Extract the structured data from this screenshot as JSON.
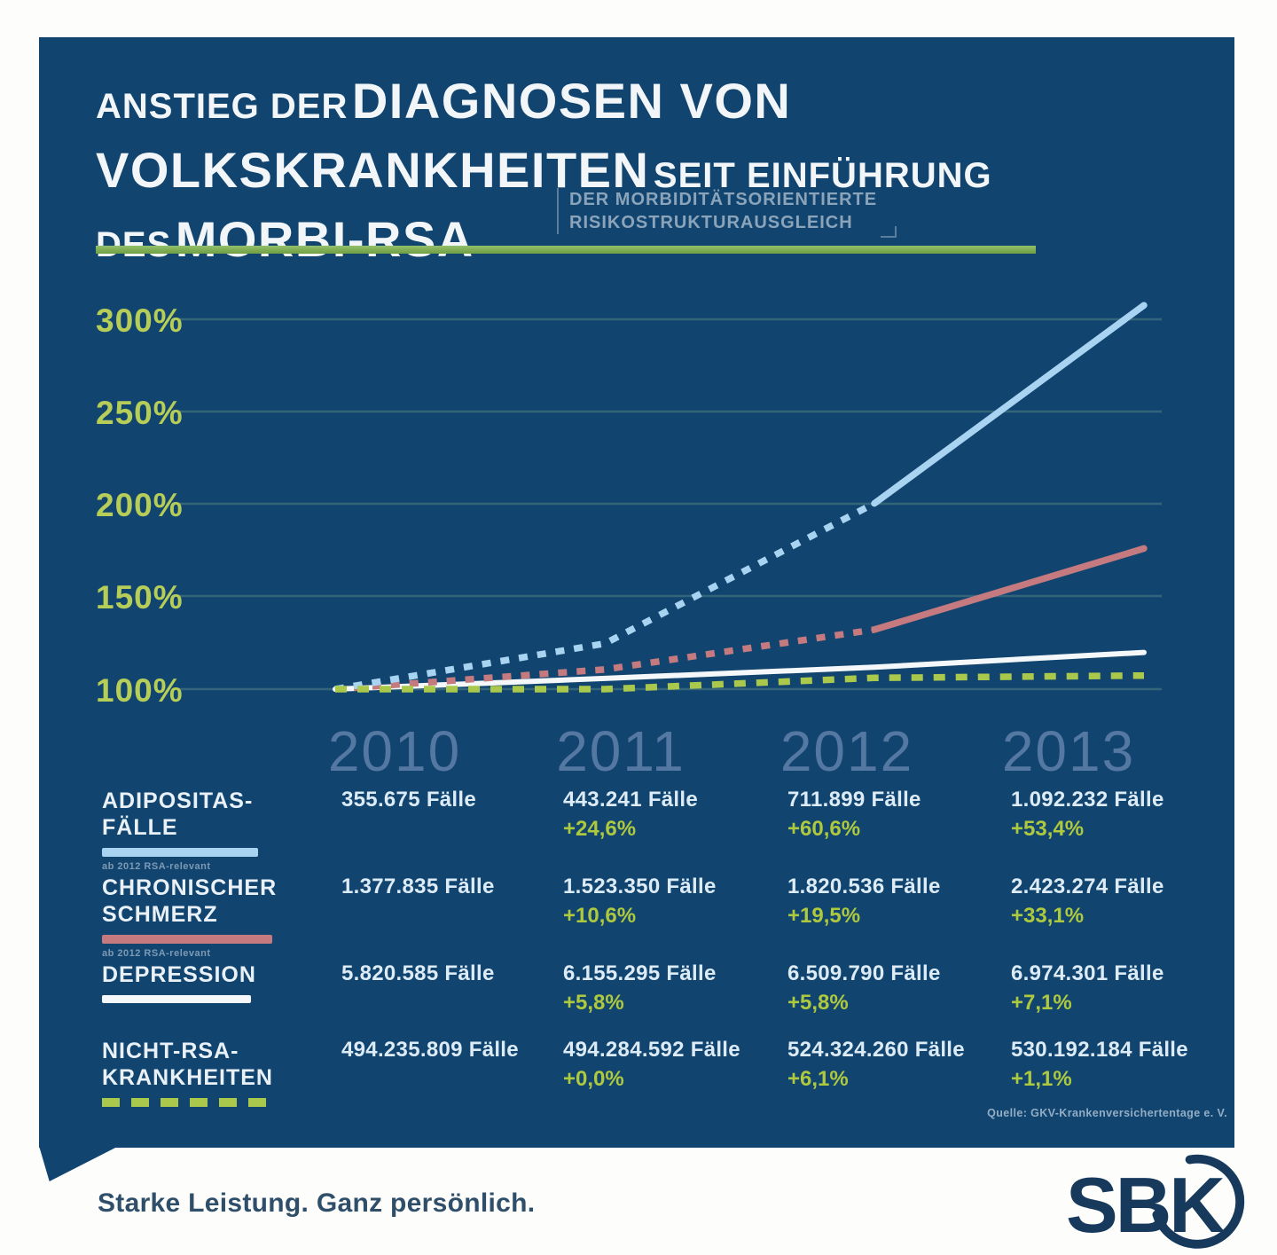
{
  "header": {
    "title": {
      "line1_small": "ANSTIEG DER",
      "line1_large": "DIAGNOSEN VON",
      "line2_large": "VOLKSKRANKHEITEN",
      "line2_small": "SEIT EINFÜHRUNG",
      "line3_small": "DES",
      "line3_large": "MORBI-RSA"
    },
    "subtitle": {
      "line1": "DER MORBIDITÄTSORIENTIERTE",
      "line2": "RISIKOSTRUKTURAUSGLEICH"
    }
  },
  "chart_data": {
    "type": "line",
    "title": "Anstieg der Diagnosen von Volkskrankheiten seit Einführung des Morbi-RSA (2010 = 100%)",
    "x_labels": [
      "2010",
      "2011",
      "2012",
      "2013"
    ],
    "yticks": [
      "300%",
      "250%",
      "200%",
      "150%",
      "100%"
    ],
    "ylim": [
      100,
      310
    ],
    "grid": true,
    "legend_position": "bottom",
    "colors": {
      "background": "#114570",
      "gridline": "#41707f",
      "ytick_green": "#b6cd58",
      "year_label": "#5d7ea8",
      "pct_green": "#aec93e",
      "value_text": "#dcebf5",
      "title_accent_rule": "#6f9e44"
    },
    "series": [
      {
        "key": "adipositas",
        "name": "Adipositas-Fälle",
        "label_line1": "ADIPOSITAS-",
        "label_line2": "FÄLLE",
        "note": "ab 2012 RSA-relevant",
        "color": "#a8d4f2",
        "solid_from_index": 2,
        "values_percent": [
          100,
          124.6,
          200.2,
          307.1
        ],
        "case_labels": [
          "355.675 Fälle",
          "443.241 Fälle",
          "711.899 Fälle",
          "1.092.232 Fälle"
        ],
        "pct_labels": [
          "",
          "+24,6%",
          "+60,6%",
          "+53,4%"
        ]
      },
      {
        "key": "chronischer-schmerz",
        "name": "Chronischer Schmerz",
        "label_line1": "CHRONISCHER",
        "label_line2": "SCHMERZ",
        "note": "ab 2012 RSA-relevant",
        "color": "#c47a7e",
        "solid_from_index": 2,
        "values_percent": [
          100,
          110.6,
          132.1,
          175.9
        ],
        "case_labels": [
          "1.377.835 Fälle",
          "1.523.350 Fälle",
          "1.820.536 Fälle",
          "2.423.274 Fälle"
        ],
        "pct_labels": [
          "",
          "+10,6%",
          "+19,5%",
          "+33,1%"
        ]
      },
      {
        "key": "depression",
        "name": "Depression",
        "label_line1": "DEPRESSION",
        "label_line2": "",
        "note": "",
        "color": "#f4f8fa",
        "solid_from_index": 0,
        "values_percent": [
          100,
          105.8,
          111.8,
          119.8
        ],
        "case_labels": [
          "5.820.585 Fälle",
          "6.155.295 Fälle",
          "6.509.790 Fälle",
          "6.974.301 Fälle"
        ],
        "pct_labels": [
          "",
          "+5,8%",
          "+5,8%",
          "+7,1%"
        ]
      },
      {
        "key": "nicht-rsa",
        "name": "Nicht-RSA-Krankheiten",
        "label_line1": "NICHT-RSA-",
        "label_line2": "KRANKHEITEN",
        "note": "",
        "color": "#a9c84c",
        "solid_from_index": 4,
        "values_percent": [
          100,
          100.0,
          106.1,
          107.3
        ],
        "case_labels": [
          "494.235.809 Fälle",
          "494.284.592 Fälle",
          "524.324.260 Fälle",
          "530.192.184 Fälle"
        ],
        "pct_labels": [
          "",
          "+0,0%",
          "+6,1%",
          "+1,1%"
        ]
      }
    ]
  },
  "source_note": "Quelle: GKV-Krankenversichertentage e. V.",
  "footer": {
    "tagline": "Starke Leistung. Ganz persönlich.",
    "logo_text": "SBK"
  }
}
